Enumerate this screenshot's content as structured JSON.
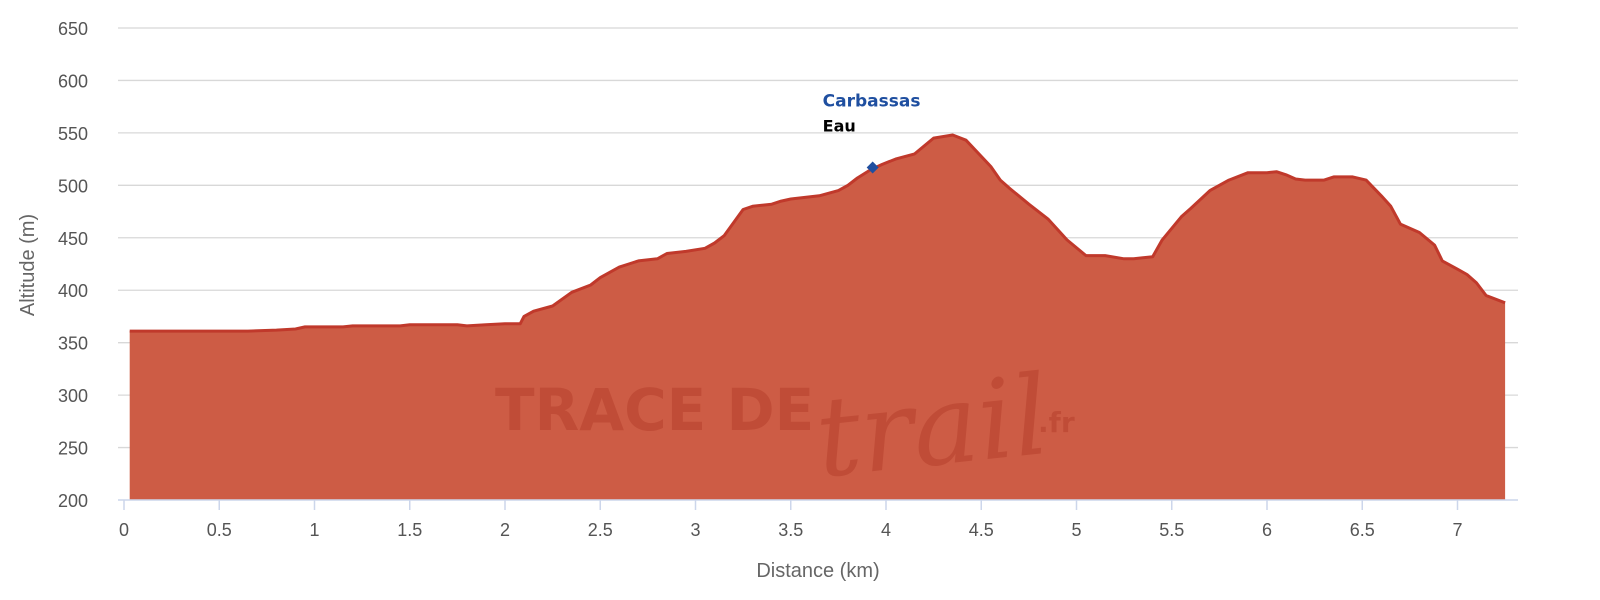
{
  "chart_data": {
    "type": "area",
    "xlabel": "Distance (km)",
    "ylabel": "Altitude (m)",
    "xlim": [
      0,
      7.3
    ],
    "ylim": [
      200,
      650
    ],
    "x_ticks": [
      0,
      0.5,
      1,
      1.5,
      2,
      2.5,
      3,
      3.5,
      4,
      4.5,
      5,
      5.5,
      6,
      6.5,
      7
    ],
    "x_tick_labels": [
      "0",
      "0.5",
      "1",
      "1.5",
      "2",
      "2.5",
      "3",
      "3.5",
      "4",
      "4.5",
      "5",
      "5.5",
      "6",
      "6.5",
      "7"
    ],
    "y_ticks": [
      200,
      250,
      300,
      350,
      400,
      450,
      500,
      550,
      600,
      650
    ],
    "y_tick_labels": [
      "200",
      "250",
      "300",
      "350",
      "400",
      "450",
      "500",
      "550",
      "600",
      "650"
    ],
    "grid": true,
    "series": [
      {
        "x": [
          0.03,
          0.65,
          0.8,
          0.9,
          0.95,
          1.15,
          1.2,
          1.45,
          1.5,
          1.75,
          1.8,
          1.9,
          2.0,
          2.08,
          2.1,
          2.15,
          2.25,
          2.35,
          2.45,
          2.5,
          2.6,
          2.65,
          2.7,
          2.8,
          2.85,
          2.95,
          3.05,
          3.1,
          3.15,
          3.25,
          3.3,
          3.4,
          3.45,
          3.5,
          3.65,
          3.75,
          3.8,
          3.85,
          3.92,
          3.98,
          4.05,
          4.15,
          4.25,
          4.35,
          4.42,
          4.55,
          4.6,
          4.65,
          4.75,
          4.85,
          4.95,
          5.05,
          5.15,
          5.25,
          5.3,
          5.4,
          5.45,
          5.55,
          5.6,
          5.7,
          5.8,
          5.9,
          6.0,
          6.05,
          6.1,
          6.15,
          6.2,
          6.3,
          6.35,
          6.45,
          6.52,
          6.6,
          6.65,
          6.7,
          6.8,
          6.88,
          6.92,
          7.0,
          7.05,
          7.1,
          7.15,
          7.25
        ],
        "y": [
          361,
          361,
          362,
          363,
          365,
          365,
          366,
          366,
          367,
          367,
          366,
          367,
          368,
          368,
          375,
          380,
          385,
          398,
          405,
          412,
          422,
          425,
          428,
          430,
          435,
          437,
          440,
          445,
          452,
          477,
          480,
          482,
          485,
          487,
          490,
          495,
          500,
          507,
          515,
          520,
          525,
          530,
          545,
          548,
          543,
          518,
          505,
          497,
          482,
          468,
          448,
          433,
          433,
          430,
          430,
          432,
          448,
          470,
          478,
          495,
          505,
          512,
          512,
          513,
          510,
          506,
          505,
          505,
          508,
          508,
          505,
          490,
          480,
          463,
          455,
          443,
          428,
          420,
          415,
          407,
          395,
          388
        ],
        "color": "#c9503a"
      }
    ],
    "annotations": [
      {
        "name": "Carbassas",
        "type": "Eau",
        "x": 3.93,
        "y": 517,
        "marker": "diamond",
        "color": "#1f4fa0"
      }
    ],
    "watermark": {
      "text": "TRACE DE",
      "script": "trail",
      "suffix": ".fr"
    },
    "colors": {
      "line": "#c0392b",
      "fill": "#cd5c45",
      "grid": "#d8d8d8",
      "axis": "#ccd6eb",
      "marker": "#1f4fa0"
    }
  }
}
